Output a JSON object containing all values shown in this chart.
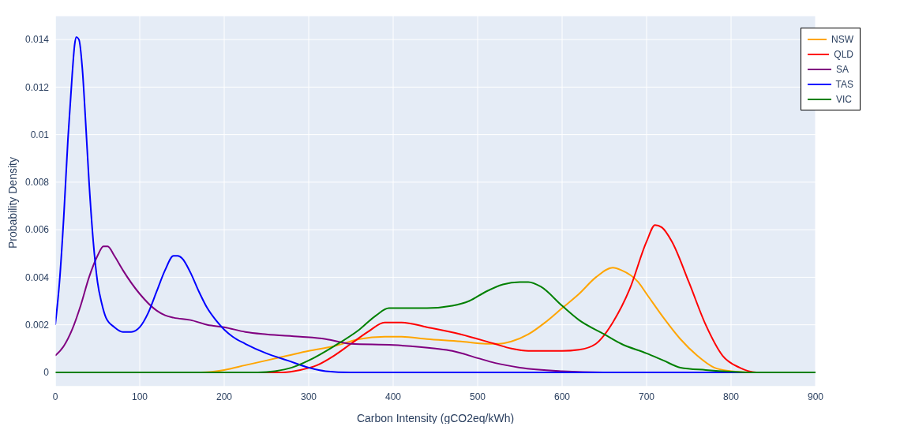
{
  "chart_data": {
    "type": "line",
    "xlabel": "Carbon Intensity (gCO2eq/kWh)",
    "ylabel": "Probability Density",
    "xlim": [
      0,
      900
    ],
    "xticks": [
      0,
      100,
      200,
      300,
      400,
      500,
      600,
      700,
      800,
      900
    ],
    "ylim": [
      -0.0006,
      0.015
    ],
    "yticks": [
      0,
      0.002,
      0.004,
      0.006,
      0.008,
      0.01,
      0.012,
      0.014
    ],
    "grid": true,
    "legend": "top right",
    "marker": "none",
    "line_style": "solid",
    "series": [
      {
        "name": "NSW",
        "color": "#ffa500",
        "x": [
          0,
          170,
          200,
          225,
          250,
          275,
          300,
          330,
          360,
          390,
          410,
          440,
          480,
          510,
          525,
          540,
          560,
          580,
          600,
          620,
          640,
          660,
          670,
          690,
          700,
          720,
          740,
          760,
          780,
          800,
          820,
          900
        ],
        "values": [
          0,
          0,
          0.0001,
          0.0003,
          0.0005,
          0.0007,
          0.0009,
          0.0011,
          0.0014,
          0.0015,
          0.0015,
          0.0014,
          0.0013,
          0.0012,
          0.0012,
          0.0013,
          0.0016,
          0.0021,
          0.0027,
          0.0033,
          0.004,
          0.0044,
          0.0043,
          0.0038,
          0.0033,
          0.0023,
          0.0014,
          0.0007,
          0.0002,
          5e-05,
          0,
          0
        ]
      },
      {
        "name": "QLD",
        "color": "#ff0000",
        "x": [
          0,
          270,
          290,
          310,
          330,
          350,
          370,
          390,
          400,
          410,
          440,
          480,
          520,
          540,
          560,
          600,
          620,
          640,
          660,
          680,
          700,
          710,
          718,
          730,
          750,
          770,
          790,
          810,
          830,
          900
        ],
        "values": [
          0,
          0,
          0.0001,
          0.0003,
          0.0007,
          0.0012,
          0.0017,
          0.0021,
          0.0021,
          0.0021,
          0.0019,
          0.0016,
          0.0012,
          0.001,
          0.0009,
          0.0009,
          0.00095,
          0.0012,
          0.0021,
          0.0035,
          0.0055,
          0.0062,
          0.0061,
          0.0055,
          0.0038,
          0.002,
          0.0007,
          0.0002,
          0,
          0
        ]
      },
      {
        "name": "SA",
        "color": "#800080",
        "x": [
          0,
          10,
          20,
          30,
          40,
          50,
          57,
          62,
          70,
          80,
          100,
          120,
          130,
          140,
          160,
          180,
          200,
          225,
          250,
          290,
          320,
          350,
          400,
          450,
          470,
          500,
          520,
          550,
          600,
          650,
          900
        ],
        "values": [
          0.0007,
          0.0011,
          0.0018,
          0.0028,
          0.004,
          0.0049,
          0.0053,
          0.0053,
          0.0049,
          0.0043,
          0.0033,
          0.0026,
          0.0024,
          0.0023,
          0.0022,
          0.002,
          0.0019,
          0.0017,
          0.0016,
          0.0015,
          0.0014,
          0.0012,
          0.00115,
          0.001,
          0.0009,
          0.0006,
          0.0004,
          0.0002,
          5e-05,
          0,
          0
        ]
      },
      {
        "name": "TAS",
        "color": "#0000ff",
        "x": [
          0,
          5,
          10,
          15,
          20,
          23,
          25,
          28,
          32,
          36,
          40,
          45,
          50,
          55,
          60,
          70,
          80,
          90,
          100,
          110,
          120,
          130,
          140,
          145,
          150,
          160,
          170,
          180,
          190,
          200,
          210,
          225,
          250,
          275,
          300,
          320,
          350,
          900
        ],
        "values": [
          0.002,
          0.0038,
          0.0065,
          0.0098,
          0.0125,
          0.0138,
          0.0141,
          0.014,
          0.0128,
          0.0105,
          0.008,
          0.0055,
          0.0038,
          0.0029,
          0.0023,
          0.0019,
          0.0017,
          0.0017,
          0.0019,
          0.0025,
          0.0034,
          0.0043,
          0.0049,
          0.0049,
          0.0048,
          0.0042,
          0.0034,
          0.0027,
          0.0022,
          0.0018,
          0.0015,
          0.0012,
          0.0008,
          0.0005,
          0.0002,
          5e-05,
          0,
          0
        ]
      },
      {
        "name": "VIC",
        "color": "#008000",
        "x": [
          0,
          240,
          260,
          280,
          300,
          330,
          360,
          380,
          395,
          420,
          440,
          470,
          490,
          510,
          530,
          550,
          560,
          575,
          600,
          620,
          650,
          670,
          700,
          720,
          740,
          770,
          800,
          820,
          900
        ],
        "values": [
          0,
          0,
          5e-05,
          0.0002,
          0.0005,
          0.0011,
          0.0018,
          0.0024,
          0.0027,
          0.0027,
          0.0027,
          0.0028,
          0.003,
          0.0034,
          0.0037,
          0.0038,
          0.0038,
          0.0036,
          0.0028,
          0.0022,
          0.0016,
          0.0012,
          0.0008,
          0.0005,
          0.0002,
          0.0001,
          3e-05,
          0,
          0
        ]
      }
    ]
  }
}
